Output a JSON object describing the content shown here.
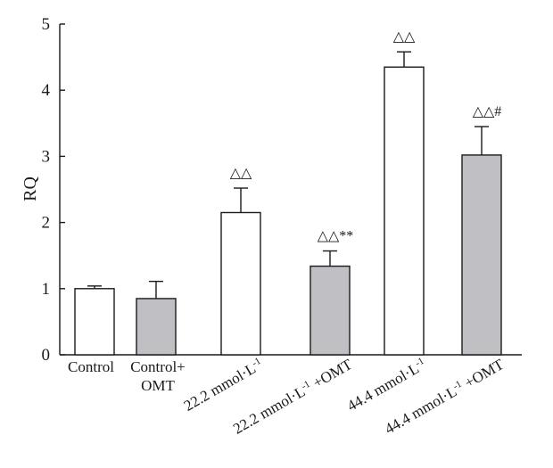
{
  "chart_data": {
    "type": "bar",
    "title": "",
    "xlabel": "",
    "ylabel": "RQ",
    "ylim": [
      0,
      5
    ],
    "yticks": [
      0,
      1,
      2,
      3,
      4,
      5
    ],
    "grid": false,
    "legend": "none",
    "categories": [
      {
        "lines": [
          "Control"
        ],
        "rotated": false
      },
      {
        "lines": [
          "Control+",
          "OMT"
        ],
        "rotated": false
      },
      {
        "rich": [
          {
            "t": "22.2 mmol·L"
          },
          {
            "t": "-1",
            "sup": true
          }
        ],
        "rotated": true
      },
      {
        "rich": [
          {
            "t": "22.2 mmol·L"
          },
          {
            "t": "-1",
            "sup": true
          },
          {
            "t": " +OMT"
          }
        ],
        "rotated": true
      },
      {
        "rich": [
          {
            "t": "44.4 mmol·L"
          },
          {
            "t": "-1",
            "sup": true
          }
        ],
        "rotated": true
      },
      {
        "rich": [
          {
            "t": "44.4 mmol·L"
          },
          {
            "t": "-1",
            "sup": true
          },
          {
            "t": " +OMT"
          }
        ],
        "rotated": true
      }
    ],
    "values": [
      1.0,
      0.85,
      2.15,
      1.34,
      4.35,
      3.02
    ],
    "errors": [
      0.04,
      0.26,
      0.37,
      0.23,
      0.23,
      0.43
    ],
    "bar_colors": [
      "#ffffff",
      "#c0c0c4",
      "#ffffff",
      "#c0c0c4",
      "#ffffff",
      "#c0c0c4"
    ],
    "annotations": [
      "",
      "",
      "△△",
      "△△**",
      "△△",
      "△△#"
    ],
    "colors": {
      "axis": "#1a1a1a",
      "open_bar": "#ffffff",
      "filled_bar": "#c0c0c4"
    }
  }
}
